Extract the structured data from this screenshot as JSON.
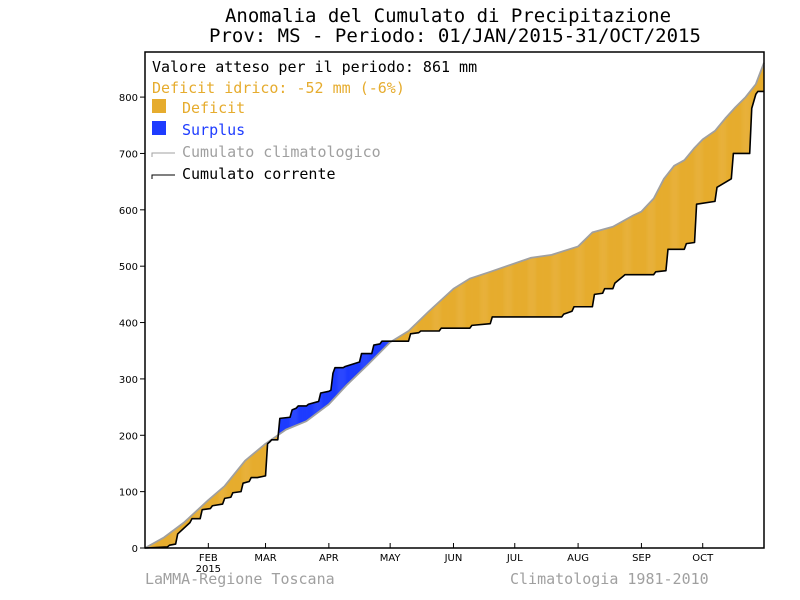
{
  "chart_data": {
    "type": "area",
    "title": "Anomalia del Cumulato di Precipitazione",
    "subtitle": "Prov: MS - Periodo: 01/JAN/2015-31/OCT/2015",
    "info": {
      "expected": "Valore atteso per il periodo: 861 mm",
      "deficit": "Deficit idrico: -52 mm (-6%)"
    },
    "legend": [
      {
        "key": "deficit",
        "label": "Deficit",
        "color": "#e6ac2e",
        "kind": "box"
      },
      {
        "key": "surplus",
        "label": "Surplus",
        "color": "#1e3cff",
        "kind": "box"
      },
      {
        "key": "climatological",
        "label": "Cumulato climatologico",
        "color": "#a0a0a0",
        "kind": "line"
      },
      {
        "key": "current",
        "label": "Cumulato corrente",
        "color": "#000000",
        "kind": "line"
      }
    ],
    "colors": {
      "deficit": "#e6ac2e",
      "surplus": "#1e3cff",
      "climatological": "#a0a0a0",
      "current": "#000000",
      "deficit_text": "#e6ac2e",
      "surplus_text": "#1e3cff"
    },
    "x_unit": "day of year 2015",
    "xlim": [
      1,
      304
    ],
    "ylim": [
      0,
      880
    ],
    "yticks": [
      0,
      100,
      200,
      300,
      400,
      500,
      600,
      700,
      800
    ],
    "xticks": [
      {
        "day": 32,
        "label": "FEB"
      },
      {
        "day": 60,
        "label": "MAR"
      },
      {
        "day": 91,
        "label": "APR"
      },
      {
        "day": 121,
        "label": "MAY"
      },
      {
        "day": 152,
        "label": "JUN"
      },
      {
        "day": 182,
        "label": "JUL"
      },
      {
        "day": 213,
        "label": "AUG"
      },
      {
        "day": 244,
        "label": "SEP"
      },
      {
        "day": 274,
        "label": "OCT"
      }
    ],
    "year_label": {
      "day": 32,
      "label": "2015"
    },
    "series": [
      {
        "name": "Cumulato climatologico",
        "x": [
          1,
          10,
          20,
          32,
          40,
          50,
          60,
          70,
          80,
          91,
          100,
          110,
          121,
          130,
          140,
          152,
          160,
          170,
          182,
          190,
          200,
          213,
          220,
          230,
          240,
          244,
          250,
          255,
          260,
          265,
          270,
          274,
          280,
          285,
          290,
          295,
          300,
          304
        ],
        "y": [
          0,
          18,
          45,
          85,
          110,
          155,
          185,
          210,
          225,
          255,
          290,
          325,
          365,
          385,
          420,
          460,
          478,
          490,
          505,
          515,
          520,
          535,
          560,
          570,
          590,
          597,
          620,
          655,
          678,
          688,
          710,
          725,
          740,
          762,
          782,
          800,
          823,
          861
        ]
      },
      {
        "name": "Cumulato corrente",
        "x": [
          1,
          12,
          13,
          16,
          17,
          23,
          24,
          28,
          29,
          33,
          34,
          39,
          40,
          43,
          44,
          48,
          49,
          52,
          53,
          55,
          56,
          60,
          61,
          62,
          63,
          66,
          67,
          72,
          73,
          75,
          76,
          80,
          81,
          86,
          87,
          91,
          92,
          93,
          94,
          98,
          99,
          106,
          107,
          112,
          113,
          116,
          117,
          130,
          131,
          135,
          136,
          145,
          146,
          160,
          161,
          170,
          171,
          180,
          181,
          205,
          206,
          210,
          211,
          220,
          221,
          225,
          226,
          230,
          231,
          235,
          236,
          250,
          251,
          256,
          257,
          265,
          266,
          270,
          271,
          280,
          281,
          288,
          289,
          297,
          298,
          300,
          301,
          304
        ],
        "y": [
          0,
          2,
          5,
          7,
          25,
          45,
          52,
          52,
          68,
          70,
          75,
          78,
          88,
          90,
          98,
          100,
          115,
          118,
          125,
          125,
          125,
          128,
          185,
          188,
          192,
          192,
          230,
          232,
          245,
          248,
          252,
          252,
          255,
          260,
          275,
          278,
          280,
          310,
          320,
          320,
          322,
          330,
          345,
          345,
          360,
          362,
          367,
          367,
          380,
          382,
          385,
          385,
          390,
          390,
          395,
          398,
          410,
          410,
          410,
          410,
          415,
          420,
          428,
          428,
          450,
          452,
          460,
          460,
          470,
          482,
          485,
          485,
          490,
          492,
          530,
          530,
          540,
          542,
          610,
          615,
          640,
          655,
          700,
          700,
          780,
          805,
          810,
          810
        ]
      }
    ],
    "footer": {
      "left": "LaMMA-Regione Toscana",
      "right": "Climatologia 1981-2010"
    }
  }
}
